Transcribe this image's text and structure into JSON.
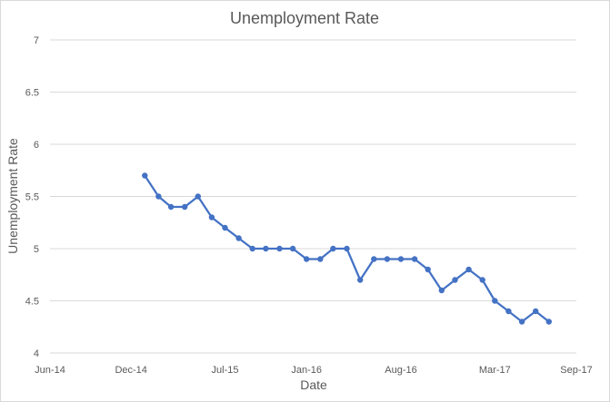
{
  "chart_data": {
    "type": "line",
    "title": "Unemployment Rate",
    "xlabel": "Date",
    "ylabel": "Unemployment Rate",
    "x_axis": {
      "type": "date",
      "range": [
        "2014-06-01",
        "2017-09-01"
      ],
      "tick_labels": [
        "Jun-14",
        "Dec-14",
        "Jul-15",
        "Jan-16",
        "Aug-16",
        "Mar-17",
        "Sep-17"
      ],
      "tick_dates": [
        "2014-06-01",
        "2014-12-01",
        "2015-07-01",
        "2016-01-01",
        "2016-08-01",
        "2017-03-01",
        "2017-09-01"
      ]
    },
    "y_axis": {
      "range": [
        4,
        7
      ],
      "tick_labels": [
        "4",
        "4.5",
        "5",
        "5.5",
        "6",
        "6.5",
        "7"
      ],
      "tick_values": [
        4,
        4.5,
        5,
        5.5,
        6,
        6.5,
        7
      ]
    },
    "grid": "horizontal",
    "legend": "none",
    "series_color": "#4472c4",
    "gridline_color": "#d9d9d9",
    "series": [
      {
        "x": [
          "2015-01-01",
          "2015-02-01",
          "2015-03-01",
          "2015-04-01",
          "2015-05-01",
          "2015-06-01",
          "2015-07-01",
          "2015-08-01",
          "2015-09-01",
          "2015-10-01",
          "2015-11-01",
          "2015-12-01",
          "2016-01-01",
          "2016-02-01",
          "2016-03-01",
          "2016-04-01",
          "2016-05-01",
          "2016-06-01",
          "2016-07-01",
          "2016-08-01",
          "2016-09-01",
          "2016-10-01",
          "2016-11-01",
          "2016-12-01",
          "2017-01-01",
          "2017-02-01",
          "2017-03-01",
          "2017-04-01",
          "2017-05-01",
          "2017-06-01",
          "2017-07-01"
        ],
        "values": [
          5.7,
          5.5,
          5.4,
          5.4,
          5.5,
          5.3,
          5.2,
          5.1,
          5.0,
          5.0,
          5.0,
          5.0,
          4.9,
          4.9,
          5.0,
          5.0,
          4.7,
          4.9,
          4.9,
          4.9,
          4.9,
          4.8,
          4.6,
          4.7,
          4.8,
          4.7,
          4.5,
          4.4,
          4.3,
          4.4,
          4.3
        ]
      }
    ]
  }
}
